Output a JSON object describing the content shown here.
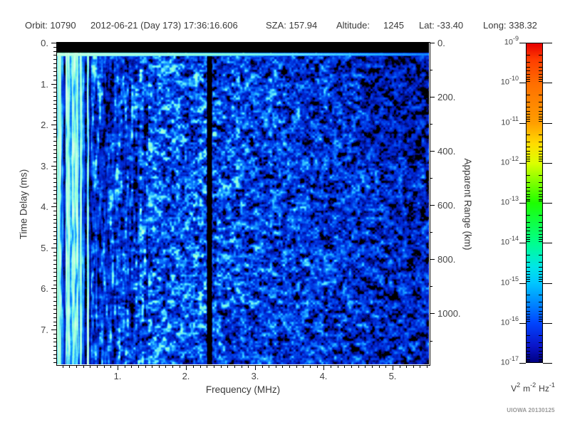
{
  "header": {
    "orbit": "Orbit: 10790",
    "datetime": "2012-06-21 (Day 173) 17:36:16.606",
    "sza": "SZA: 157.94",
    "altitude_label": "Altitude:",
    "altitude_value": "1245",
    "lat": "Lat: -33.40",
    "long": "Long: 338.32"
  },
  "footer": {
    "watermark": "UIOWA 20130125"
  },
  "chart_data": {
    "type": "heatmap",
    "title": "",
    "xlabel": "Frequency (MHz)",
    "ylabel": "Time Delay (ms)",
    "y2label": "Apparent Range (km)",
    "x_axis": {
      "range_mhz": [
        0.12,
        5.53
      ],
      "major_ticks": [
        {
          "v": 1,
          "label": "1."
        },
        {
          "v": 2,
          "label": "2."
        },
        {
          "v": 3,
          "label": "3."
        },
        {
          "v": 4,
          "label": "4."
        },
        {
          "v": 5,
          "label": "5."
        }
      ],
      "minor_step_mhz": 0.1
    },
    "y_axis": {
      "range_ms": [
        0,
        7.85
      ],
      "major_ticks": [
        {
          "v": 0,
          "label": "0."
        },
        {
          "v": 1,
          "label": "1."
        },
        {
          "v": 2,
          "label": "2."
        },
        {
          "v": 3,
          "label": "3."
        },
        {
          "v": 4,
          "label": "4."
        },
        {
          "v": 5,
          "label": "5."
        },
        {
          "v": 6,
          "label": "6."
        },
        {
          "v": 7,
          "label": "7."
        }
      ],
      "minor_step_ms": 0.1
    },
    "y2_axis": {
      "range_km": [
        0,
        1188
      ],
      "major_ticks": [
        {
          "v": 0,
          "label": "0."
        },
        {
          "v": 200,
          "label": "200."
        },
        {
          "v": 400,
          "label": "400."
        },
        {
          "v": 600,
          "label": "600."
        },
        {
          "v": 800,
          "label": "800."
        },
        {
          "v": 1000,
          "label": "1000."
        }
      ],
      "minor_step_km": 100
    },
    "colorbar": {
      "scale": "log10",
      "max_exponent": -9,
      "min_exponent": -17,
      "tick_base": "10",
      "tick_exponents": [
        "-9",
        "-10",
        "-11",
        "-12",
        "-13",
        "-14",
        "-15",
        "-16",
        "-17"
      ],
      "unit_parts": [
        {
          "base": "V",
          "exp": "2"
        },
        {
          "base": "m",
          "exp": "-2"
        },
        {
          "base": "Hz",
          "exp": "-1"
        }
      ],
      "gradient_stops": [
        [
          0.0,
          "#e60000"
        ],
        [
          0.05,
          "#ff3c00"
        ],
        [
          0.125,
          "#ff6e00"
        ],
        [
          0.25,
          "#ff9e00"
        ],
        [
          0.315,
          "#ffdc00"
        ],
        [
          0.375,
          "#dcff00"
        ],
        [
          0.44,
          "#78ff00"
        ],
        [
          0.5,
          "#1eff00"
        ],
        [
          0.625,
          "#00ff8c"
        ],
        [
          0.7,
          "#00e6e6"
        ],
        [
          0.75,
          "#00c8ff"
        ],
        [
          0.82,
          "#0082ff"
        ],
        [
          0.875,
          "#0046ff"
        ],
        [
          0.95,
          "#0a14c8"
        ],
        [
          1.0,
          "#000082"
        ]
      ]
    },
    "features": {
      "description": "Noisy blue ionospheric radar echo field with cyan speckles; vertical electron plasma oscillation stripes at low frequency; bright horizontal surface/local echo line just below 0.3 ms; dark vertical attenuation gap near 2.33 MHz; signal fades into black patches above ~4 MHz.",
      "top_black_band_ms": [
        0,
        0.24
      ],
      "surface_echo_line_ms": [
        0.245,
        0.31
      ],
      "plasma_stripe_region_max_mhz": 0.62,
      "streaky_region_max_mhz": 1.45,
      "plasma_harmonic_lines_mhz": [
        0.145,
        0.32,
        0.46
      ],
      "dark_gap_mhz": 2.33,
      "bright_zone_before_gap_mhz": [
        2.1,
        2.3
      ],
      "fadeout_start_mhz": 4.0
    },
    "heatmap_palette_stops": [
      [
        0.0,
        "#000000"
      ],
      [
        0.15,
        "#000000"
      ],
      [
        0.19,
        "#000a6e"
      ],
      [
        0.3,
        "#0020c8"
      ],
      [
        0.44,
        "#0040e8"
      ],
      [
        0.6,
        "#0c78ff"
      ],
      [
        0.74,
        "#28b8ff"
      ],
      [
        0.86,
        "#64e6ff"
      ],
      [
        1.0,
        "#8cffd7"
      ],
      [
        1.35,
        "#d2ffe6"
      ]
    ],
    "noise": {
      "seed": 20130125
    }
  }
}
